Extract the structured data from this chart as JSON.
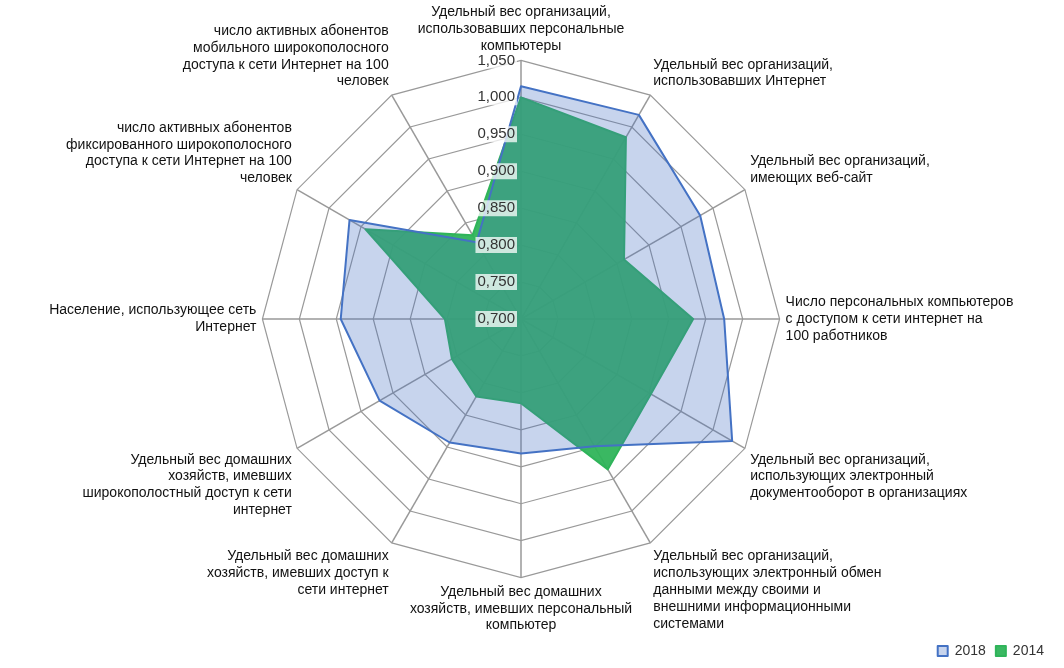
{
  "chart_data": {
    "type": "radar",
    "categories": [
      "Удельный вес организаций, использовавших персональные компьютеры",
      "Удельный вес организаций, использовавших  Интернет",
      "Удельный вес организаций, имеющих веб-сайт",
      "Число персональных компьютеров с доступом к сети интернет на 100 работников",
      "Удельный вес организаций, использующих электронный документооборот в организациях",
      "Удельный вес организаций, использующих электронный обмен данными между своими и внешними информационными системами",
      "Удельный вес домашних хозяйств, имевших персональный компьютер",
      "Удельный вес домашних хозяйств, имевших доступ к сети интернет",
      "Удельный вес домашних хозяйств, имевших широкополостный доступ к сети интернет",
      "Население, использующее сеть Интернет",
      "число активных абонентов фиксированного широкополосного доступа к сети Интернет на 100 человек",
      "число активных абонентов мобильного широкополосного доступа к сети Интернет на 100 человек"
    ],
    "series": [
      {
        "name": "2018",
        "color": "#4472c4",
        "values": [
          1.015,
          1.019,
          0.98,
          0.975,
          1.03,
          0.899,
          0.882,
          0.893,
          0.921,
          0.944,
          0.968,
          0.82
        ]
      },
      {
        "name": "2014",
        "color": "#2fb45a",
        "values": [
          1.0,
          0.984,
          0.861,
          0.933,
          0.903,
          0.935,
          0.814,
          0.821,
          0.808,
          0.803,
          0.943,
          0.831
        ]
      }
    ],
    "ylim": [
      0.7,
      1.05
    ],
    "yticks": [
      {
        "value": 0.7,
        "label": "0,700"
      },
      {
        "value": 0.75,
        "label": "0,750"
      },
      {
        "value": 0.8,
        "label": "0,800"
      },
      {
        "value": 0.85,
        "label": "0,850"
      },
      {
        "value": 0.9,
        "label": "0,900"
      },
      {
        "value": 0.95,
        "label": "0,950"
      },
      {
        "value": 1.0,
        "label": "1,000"
      },
      {
        "value": 1.05,
        "label": "1,050"
      }
    ],
    "grid": true,
    "legend": "bottom right",
    "marker": "none"
  }
}
